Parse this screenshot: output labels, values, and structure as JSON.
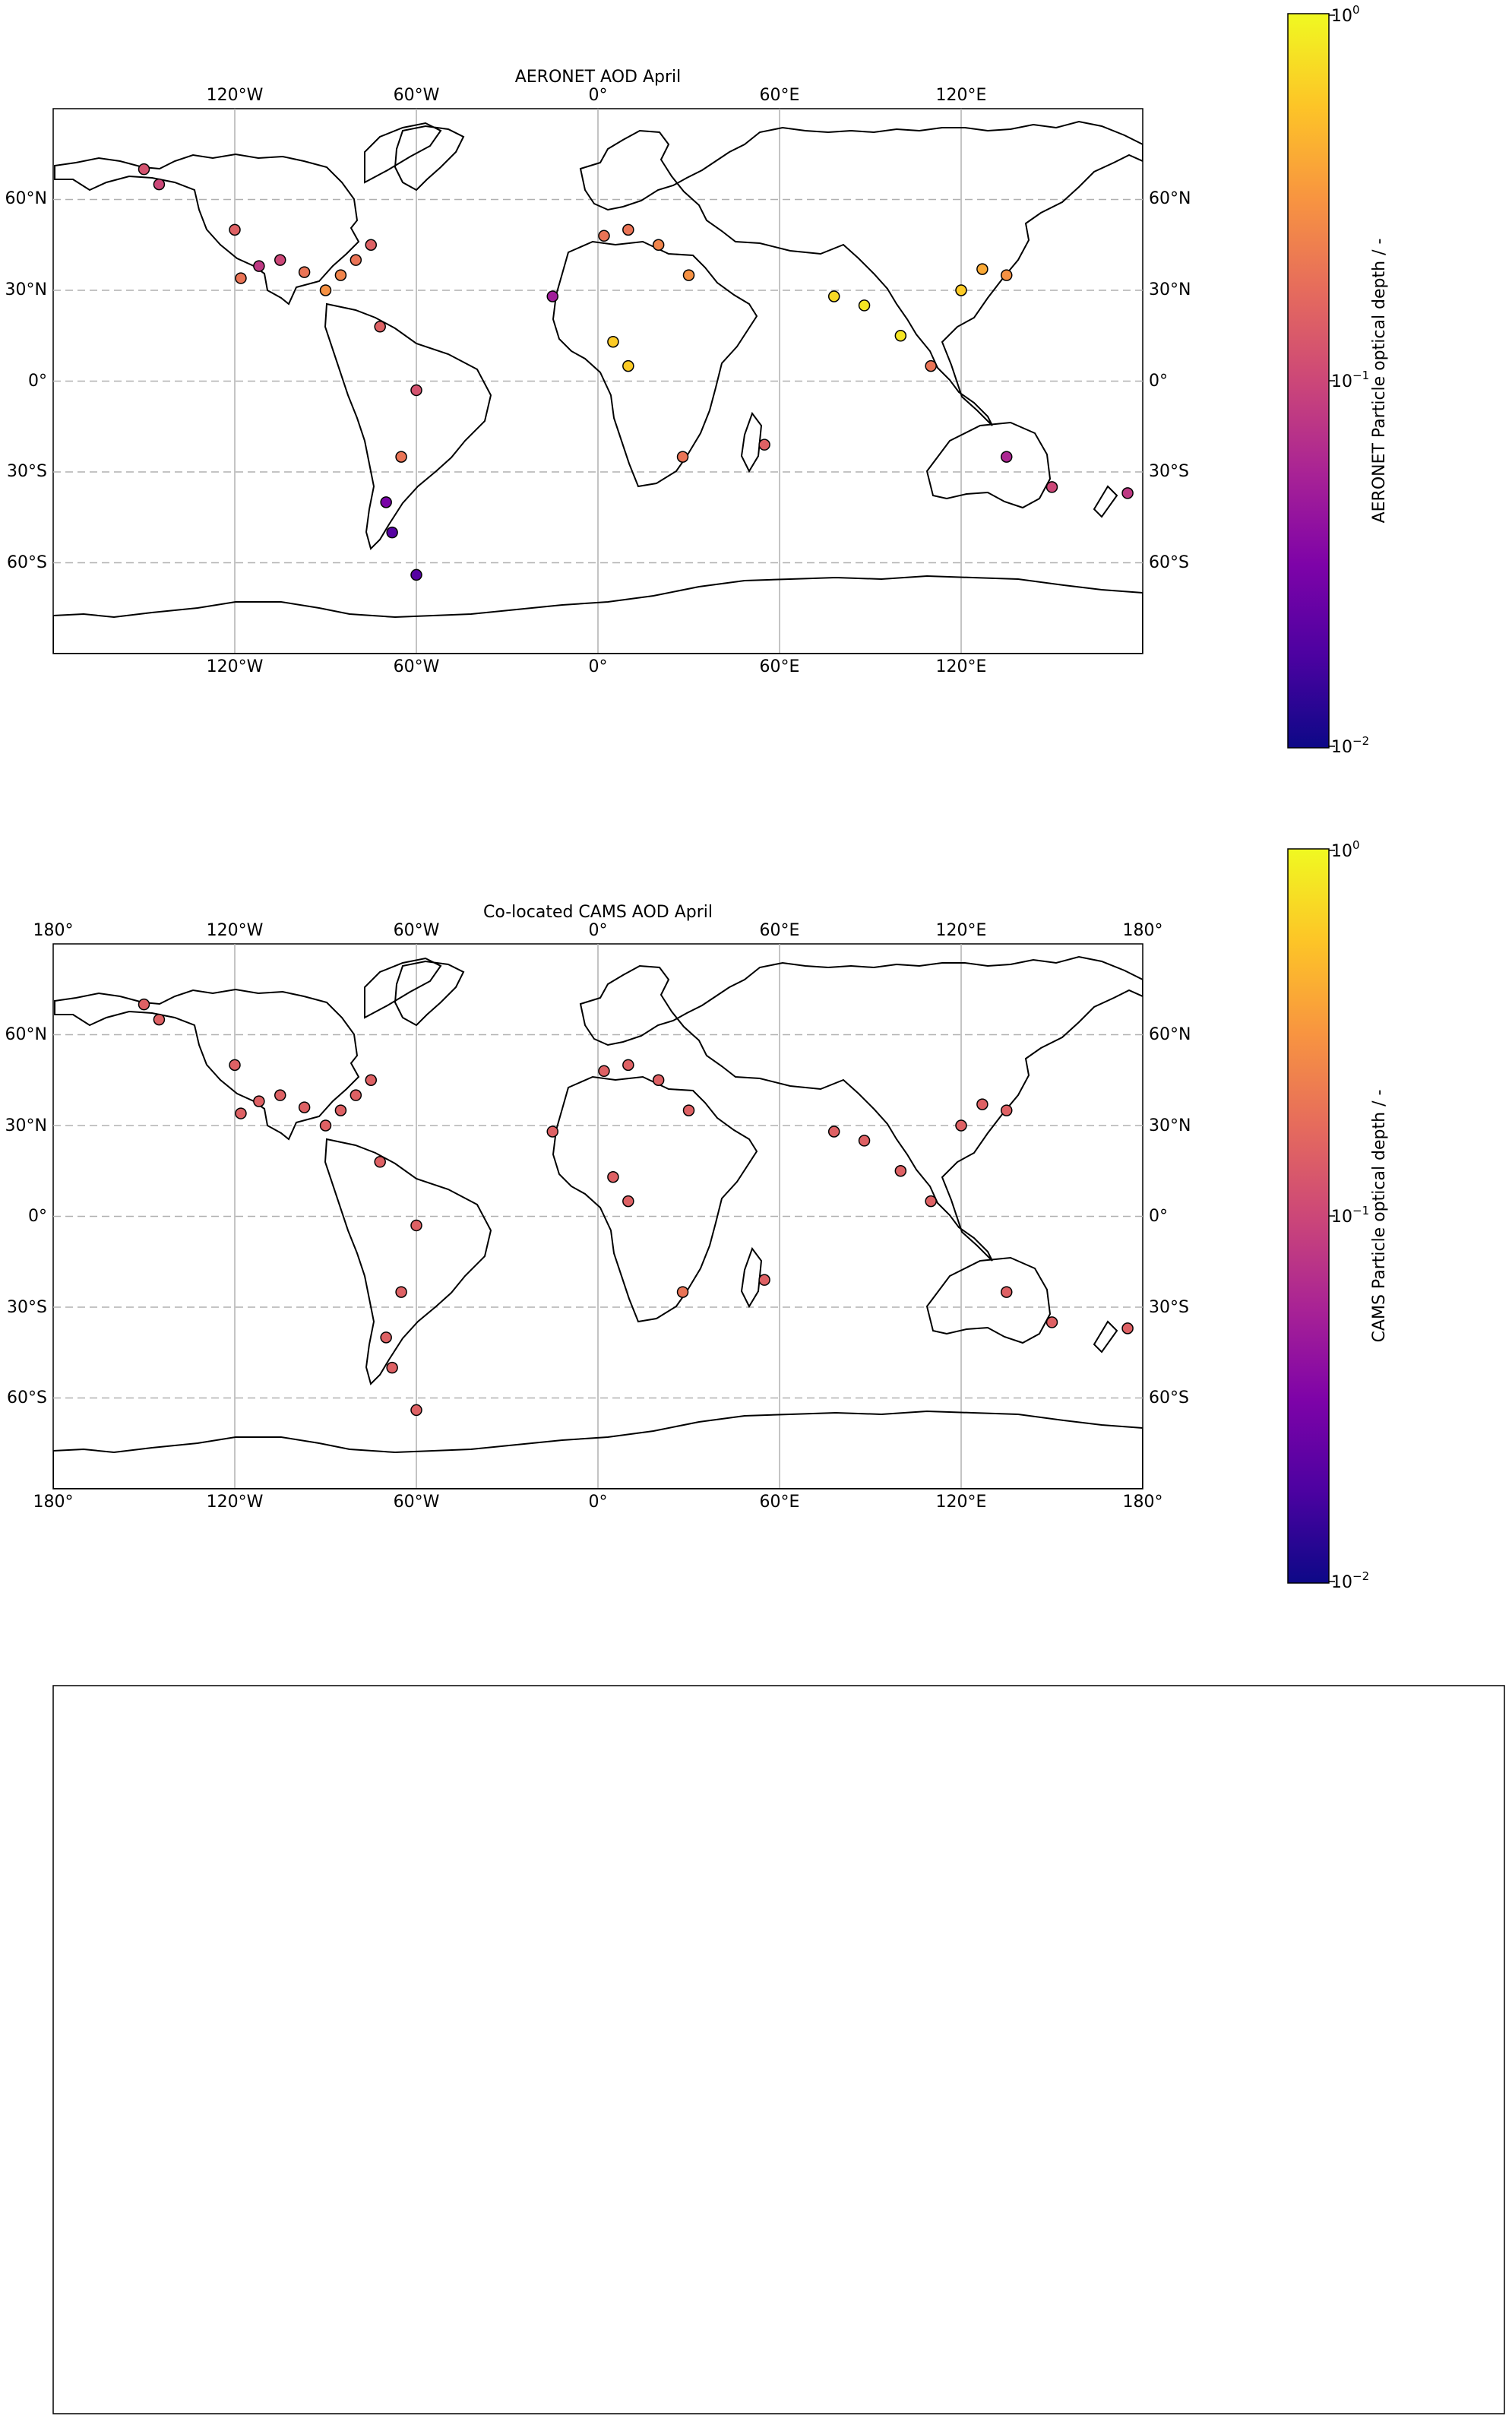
{
  "maps": [
    {
      "title": "AERONET AOD April",
      "colorbar_label": "AERONET Particle optical depth / -",
      "top_lon_ticks": [
        "120°W",
        "60°W",
        "0°",
        "60°E",
        "120°E"
      ],
      "bottom_lon_ticks": [
        "120°W",
        "60°W",
        "0°",
        "60°E",
        "120°E"
      ],
      "left_lat_ticks": [
        "60°N",
        "30°N",
        "0°",
        "30°S",
        "60°S"
      ],
      "right_lat_ticks": [
        "60°N",
        "30°N",
        "0°",
        "30°S",
        "60°S"
      ]
    },
    {
      "title": "Co-located CAMS AOD April",
      "colorbar_label": "CAMS Particle optical depth / -",
      "top_lon_ticks": [
        "180°",
        "120°W",
        "60°W",
        "0°",
        "60°E",
        "120°E",
        "180°"
      ],
      "bottom_lon_ticks": [
        "180°",
        "120°W",
        "60°W",
        "0°",
        "60°E",
        "120°E",
        "180°"
      ],
      "left_lat_ticks": [
        "60°N",
        "30°N",
        "0°",
        "30°S",
        "60°S"
      ],
      "right_lat_ticks": [
        "60°N",
        "30°N",
        "0°",
        "30°S",
        "60°S"
      ]
    }
  ],
  "colorbar": {
    "scale": "log",
    "colormap": "plasma",
    "range": [
      0.01,
      1
    ],
    "tick_base": "10",
    "tick_exponents": [
      "0",
      "−1",
      "−2"
    ]
  },
  "colors": {
    "ocean": "#ffffff",
    "coast": "#000000",
    "grid": "#b0b0b0"
  },
  "chart_data": [
    {
      "type": "scatter",
      "title": "AERONET AOD April",
      "projection": "PlateCarree",
      "xlim": [
        -180,
        180
      ],
      "ylim": [
        -90,
        90
      ],
      "color_scale": "log",
      "clim": [
        0.01,
        1
      ],
      "points": [
        {
          "lon": -150,
          "lat": 70,
          "aod": 0.12
        },
        {
          "lon": -145,
          "lat": 65,
          "aod": 0.1
        },
        {
          "lon": -120,
          "lat": 50,
          "aod": 0.15
        },
        {
          "lon": -118,
          "lat": 34,
          "aod": 0.2
        },
        {
          "lon": -112,
          "lat": 38,
          "aod": 0.08
        },
        {
          "lon": -105,
          "lat": 40,
          "aod": 0.1
        },
        {
          "lon": -97,
          "lat": 36,
          "aod": 0.2
        },
        {
          "lon": -90,
          "lat": 30,
          "aod": 0.3
        },
        {
          "lon": -85,
          "lat": 35,
          "aod": 0.25
        },
        {
          "lon": -80,
          "lat": 40,
          "aod": 0.2
        },
        {
          "lon": -75,
          "lat": 45,
          "aod": 0.15
        },
        {
          "lon": -72,
          "lat": 18,
          "aod": 0.15
        },
        {
          "lon": -60,
          "lat": -3,
          "aod": 0.12
        },
        {
          "lon": -65,
          "lat": -25,
          "aod": 0.2
        },
        {
          "lon": -70,
          "lat": -40,
          "aod": 0.03
        },
        {
          "lon": -68,
          "lat": -50,
          "aod": 0.02
        },
        {
          "lon": -60,
          "lat": -64,
          "aod": 0.02
        },
        {
          "lon": 2,
          "lat": 48,
          "aod": 0.2
        },
        {
          "lon": 10,
          "lat": 50,
          "aod": 0.2
        },
        {
          "lon": 20,
          "lat": 45,
          "aod": 0.25
        },
        {
          "lon": 30,
          "lat": 35,
          "aod": 0.3
        },
        {
          "lon": -15,
          "lat": 28,
          "aod": 0.05
        },
        {
          "lon": 5,
          "lat": 13,
          "aod": 0.6
        },
        {
          "lon": 10,
          "lat": 5,
          "aod": 0.6
        },
        {
          "lon": 28,
          "lat": -25,
          "aod": 0.2
        },
        {
          "lon": 55,
          "lat": -21,
          "aod": 0.15
        },
        {
          "lon": 78,
          "lat": 28,
          "aod": 0.7
        },
        {
          "lon": 88,
          "lat": 25,
          "aod": 0.8
        },
        {
          "lon": 100,
          "lat": 15,
          "aod": 0.8
        },
        {
          "lon": 110,
          "lat": 5,
          "aod": 0.2
        },
        {
          "lon": 120,
          "lat": 30,
          "aod": 0.6
        },
        {
          "lon": 127,
          "lat": 37,
          "aod": 0.4
        },
        {
          "lon": 135,
          "lat": 35,
          "aod": 0.3
        },
        {
          "lon": 135,
          "lat": -25,
          "aod": 0.06
        },
        {
          "lon": 150,
          "lat": -35,
          "aod": 0.1
        },
        {
          "lon": 175,
          "lat": -37,
          "aod": 0.08
        }
      ]
    },
    {
      "type": "scatter",
      "title": "Co-located CAMS AOD April",
      "projection": "PlateCarree",
      "xlim": [
        -180,
        180
      ],
      "ylim": [
        -90,
        90
      ],
      "color_scale": "log",
      "clim": [
        0.01,
        1
      ],
      "points": [
        {
          "lon": -150,
          "lat": 70,
          "aod": 0.15
        },
        {
          "lon": -145,
          "lat": 65,
          "aod": 0.15
        },
        {
          "lon": -120,
          "lat": 50,
          "aod": 0.15
        },
        {
          "lon": -118,
          "lat": 34,
          "aod": 0.15
        },
        {
          "lon": -112,
          "lat": 38,
          "aod": 0.15
        },
        {
          "lon": -105,
          "lat": 40,
          "aod": 0.15
        },
        {
          "lon": -97,
          "lat": 36,
          "aod": 0.15
        },
        {
          "lon": -90,
          "lat": 30,
          "aod": 0.15
        },
        {
          "lon": -85,
          "lat": 35,
          "aod": 0.15
        },
        {
          "lon": -80,
          "lat": 40,
          "aod": 0.15
        },
        {
          "lon": -75,
          "lat": 45,
          "aod": 0.15
        },
        {
          "lon": -72,
          "lat": 18,
          "aod": 0.15
        },
        {
          "lon": -60,
          "lat": -3,
          "aod": 0.15
        },
        {
          "lon": -65,
          "lat": -25,
          "aod": 0.15
        },
        {
          "lon": -70,
          "lat": -40,
          "aod": 0.15
        },
        {
          "lon": -68,
          "lat": -50,
          "aod": 0.15
        },
        {
          "lon": -60,
          "lat": -64,
          "aod": 0.15
        },
        {
          "lon": 2,
          "lat": 48,
          "aod": 0.15
        },
        {
          "lon": 10,
          "lat": 50,
          "aod": 0.15
        },
        {
          "lon": 20,
          "lat": 45,
          "aod": 0.15
        },
        {
          "lon": 30,
          "lat": 35,
          "aod": 0.15
        },
        {
          "lon": -15,
          "lat": 28,
          "aod": 0.15
        },
        {
          "lon": 5,
          "lat": 13,
          "aod": 0.15
        },
        {
          "lon": 10,
          "lat": 5,
          "aod": 0.15
        },
        {
          "lon": 28,
          "lat": -25,
          "aod": 0.2
        },
        {
          "lon": 55,
          "lat": -21,
          "aod": 0.15
        },
        {
          "lon": 78,
          "lat": 28,
          "aod": 0.15
        },
        {
          "lon": 88,
          "lat": 25,
          "aod": 0.15
        },
        {
          "lon": 100,
          "lat": 15,
          "aod": 0.15
        },
        {
          "lon": 110,
          "lat": 5,
          "aod": 0.15
        },
        {
          "lon": 120,
          "lat": 30,
          "aod": 0.15
        },
        {
          "lon": 127,
          "lat": 37,
          "aod": 0.15
        },
        {
          "lon": 135,
          "lat": 35,
          "aod": 0.15
        },
        {
          "lon": 135,
          "lat": -25,
          "aod": 0.15
        },
        {
          "lon": 150,
          "lat": -35,
          "aod": 0.15
        },
        {
          "lon": 175,
          "lat": -37,
          "aod": 0.15
        }
      ]
    }
  ]
}
